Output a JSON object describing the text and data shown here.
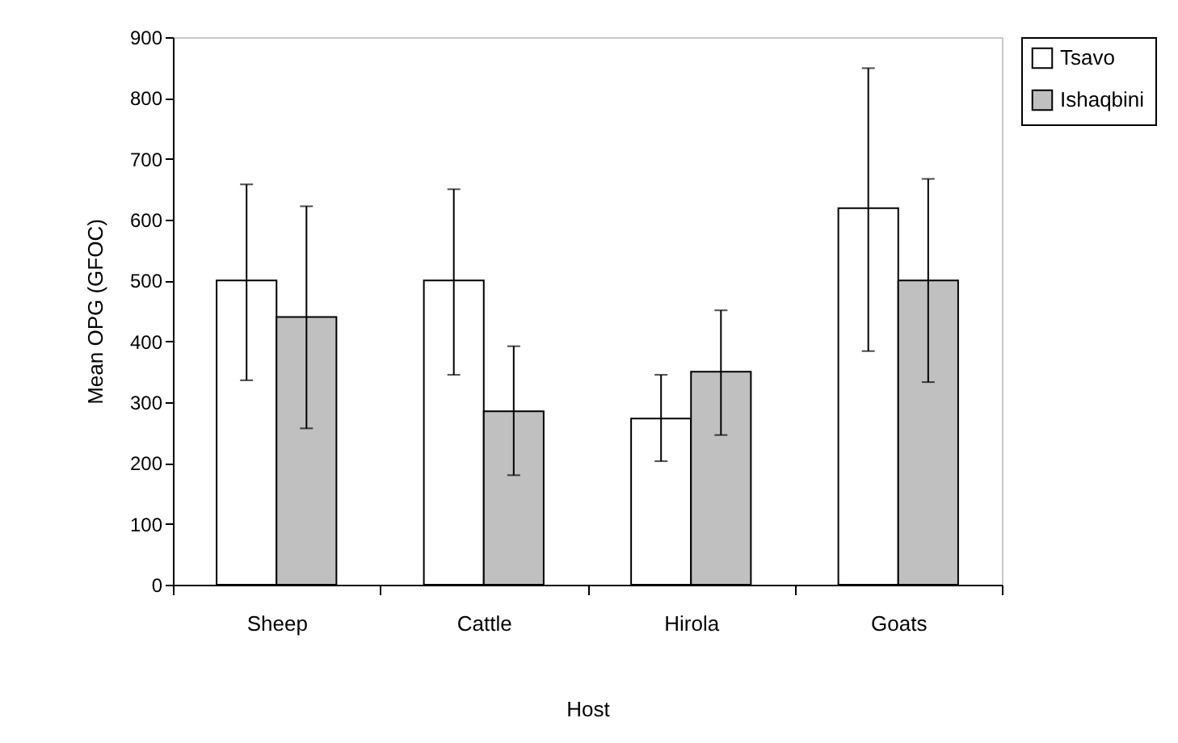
{
  "chart_data": {
    "type": "bar",
    "xlabel": "Host",
    "ylabel": "Mean OPG (GFOC)",
    "categories": [
      "Sheep",
      "Cattle",
      "Hirola",
      "Goats"
    ],
    "series": [
      {
        "name": "Tsavo",
        "color": "#ffffff",
        "values": [
          500,
          500,
          273,
          619
        ],
        "errors": [
          [
            336,
            658
          ],
          [
            345,
            650
          ],
          [
            203,
            345
          ],
          [
            384,
            849
          ]
        ]
      },
      {
        "name": "Ishaqbini",
        "color": "#c0c0c0",
        "values": [
          440,
          285,
          350,
          500
        ],
        "errors": [
          [
            257,
            622
          ],
          [
            180,
            392
          ],
          [
            246,
            451
          ],
          [
            333,
            667
          ]
        ]
      }
    ],
    "ylim": [
      0,
      900
    ],
    "yticks": [
      0,
      100,
      200,
      300,
      400,
      500,
      600,
      700,
      800,
      900
    ],
    "grid": false,
    "legend": "right"
  }
}
